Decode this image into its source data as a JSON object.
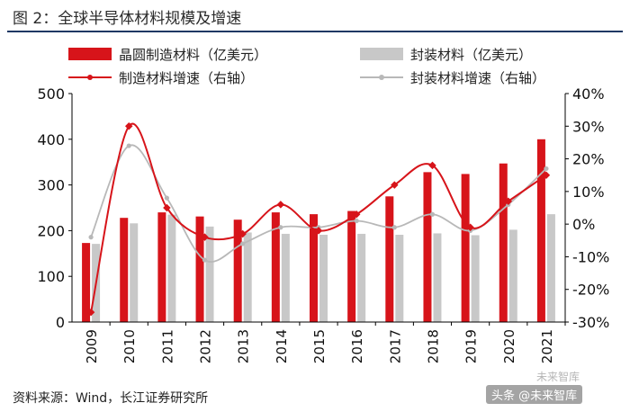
{
  "figure": {
    "title": "图 2：全球半导体材料规模及增速",
    "source": "资料来源：Wind，长江证券研究所",
    "watermark": "头条 @未来智库",
    "watermark_mark": "未来智库"
  },
  "colors": {
    "red": "#d7141a",
    "gray": "#c8c8c8",
    "axis": "#000000"
  },
  "chart_data": {
    "type": "bar",
    "categories": [
      "2009",
      "2010",
      "2011",
      "2012",
      "2013",
      "2014",
      "2015",
      "2016",
      "2017",
      "2018",
      "2019",
      "2020",
      "2021"
    ],
    "series": [
      {
        "name": "晶圆制造材料（亿美元）",
        "kind": "bar",
        "axis": "left",
        "color": "#d7141a",
        "values": [
          173,
          228,
          240,
          231,
          224,
          240,
          236,
          243,
          275,
          328,
          324,
          347,
          400
        ]
      },
      {
        "name": "封装材料（亿美元）",
        "kind": "bar",
        "axis": "left",
        "color": "#c8c8c8",
        "values": [
          171,
          216,
          235,
          209,
          196,
          193,
          191,
          193,
          191,
          194,
          190,
          202,
          236
        ]
      },
      {
        "name": "制造材料增速（右轴）",
        "kind": "line",
        "axis": "right",
        "color": "#d7141a",
        "values": [
          -27,
          30,
          5,
          -4,
          -3,
          6,
          -2,
          3,
          12,
          18,
          -1,
          7,
          15
        ]
      },
      {
        "name": "封装材料增速（右轴）",
        "kind": "line",
        "axis": "right",
        "color": "#b8b8b8",
        "values": [
          -4,
          24,
          8,
          -11,
          -6,
          -1,
          -1,
          1,
          -1,
          3,
          -2,
          6,
          17
        ]
      }
    ],
    "left_axis": {
      "min": 0,
      "max": 500,
      "ticks": [
        0,
        100,
        200,
        300,
        400,
        500
      ]
    },
    "right_axis": {
      "min": -30,
      "max": 40,
      "ticks": [
        -30,
        -20,
        -10,
        0,
        10,
        20,
        30,
        40
      ],
      "tick_labels": [
        "-30%",
        "-20%",
        "-10%",
        "0%",
        "10%",
        "20%",
        "30%",
        "40%"
      ]
    },
    "grid": false,
    "legend": "top"
  }
}
